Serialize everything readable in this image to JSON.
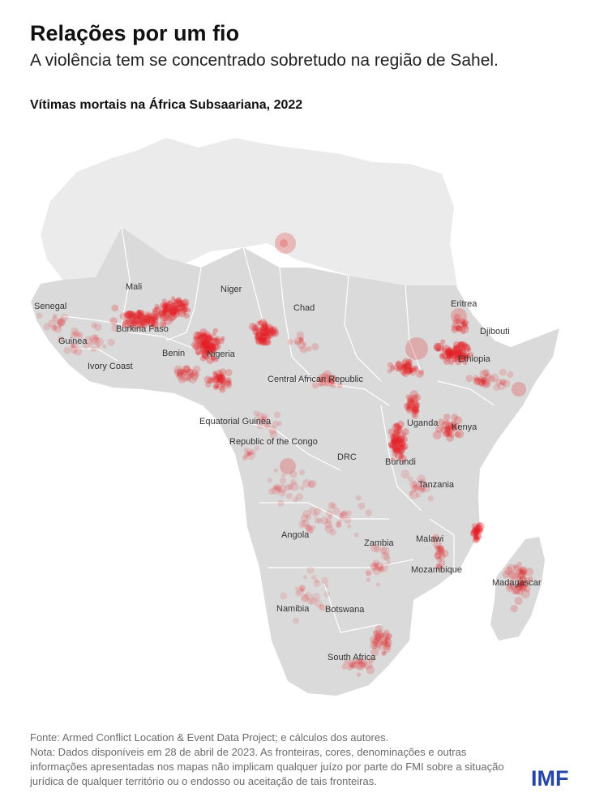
{
  "title": "Relações por um fio",
  "subtitle": "A violência tem se concentrado sobretudo na região de Sahel.",
  "map_title": "Vítimas mortais na África Subsaariana, 2022",
  "country_labels": [
    "Senegal",
    "Mali",
    "Niger",
    "Chad",
    "Burkina Faso",
    "Guinea",
    "Benin",
    "Ivory Coast",
    "Nigeria",
    "Central African Republic",
    "Eritrea",
    "Djibouti",
    "Ethiopia",
    "Equatorial Guinea",
    "Uganda",
    "Kenya",
    "Republic of the Congo",
    "DRC",
    "Burundi",
    "Tanzania",
    "Angola",
    "Zambia",
    "Malawi",
    "Mozambique",
    "Madagascar",
    "Namibia",
    "Botswana",
    "South Africa"
  ],
  "colors": {
    "land_ssa": "#dadada",
    "land_north": "#ebebeb",
    "border": "#ffffff",
    "point": "#e31e24",
    "logo": "#2546a8"
  },
  "source": "Fonte: Armed Conflict Location & Event Data Project; e cálculos dos autores.",
  "note": "Nota: Dados disponíveis em 28 de abril de 2023. As fronteiras, cores, denominações e outras informações apresentadas nos mapas não implicam qualquer juízo por parte do FMI sobre a situação jurídica de qualquer território ou o endosso ou aceitação de tais fronteiras.",
  "logo": "IMF"
}
